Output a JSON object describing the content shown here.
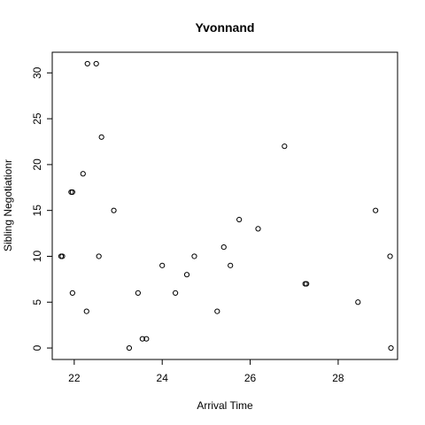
{
  "chart_data": {
    "type": "scatter",
    "title": "Yvonnand",
    "xlabel": "Arrival Time",
    "ylabel": "Sibling Negotiationr",
    "xlim": [
      21.5,
      29.35
    ],
    "ylim": [
      -1.25,
      32.25
    ],
    "xticks": [
      22,
      24,
      26,
      28
    ],
    "yticks": [
      0,
      5,
      10,
      15,
      20,
      25,
      30
    ],
    "grid": false,
    "marker": "open-circle",
    "colors": {
      "marker": "#000000",
      "axes": "#000000",
      "background": "#ffffff"
    },
    "points": [
      {
        "x": 21.7,
        "y": 10
      },
      {
        "x": 21.73,
        "y": 10
      },
      {
        "x": 21.93,
        "y": 17
      },
      {
        "x": 21.96,
        "y": 17
      },
      {
        "x": 21.96,
        "y": 6
      },
      {
        "x": 22.2,
        "y": 19
      },
      {
        "x": 22.28,
        "y": 4
      },
      {
        "x": 22.3,
        "y": 31
      },
      {
        "x": 22.5,
        "y": 31
      },
      {
        "x": 22.56,
        "y": 10
      },
      {
        "x": 22.62,
        "y": 23
      },
      {
        "x": 22.9,
        "y": 15
      },
      {
        "x": 23.25,
        "y": 0
      },
      {
        "x": 23.45,
        "y": 6
      },
      {
        "x": 23.55,
        "y": 1
      },
      {
        "x": 23.64,
        "y": 1
      },
      {
        "x": 24.0,
        "y": 9
      },
      {
        "x": 24.3,
        "y": 6
      },
      {
        "x": 24.56,
        "y": 8
      },
      {
        "x": 24.73,
        "y": 10
      },
      {
        "x": 25.25,
        "y": 4
      },
      {
        "x": 25.4,
        "y": 11
      },
      {
        "x": 25.55,
        "y": 9
      },
      {
        "x": 25.75,
        "y": 14
      },
      {
        "x": 26.18,
        "y": 13
      },
      {
        "x": 26.78,
        "y": 22
      },
      {
        "x": 27.25,
        "y": 7
      },
      {
        "x": 27.28,
        "y": 7
      },
      {
        "x": 28.45,
        "y": 5
      },
      {
        "x": 28.85,
        "y": 15
      },
      {
        "x": 29.18,
        "y": 10
      },
      {
        "x": 29.2,
        "y": 0
      }
    ]
  }
}
